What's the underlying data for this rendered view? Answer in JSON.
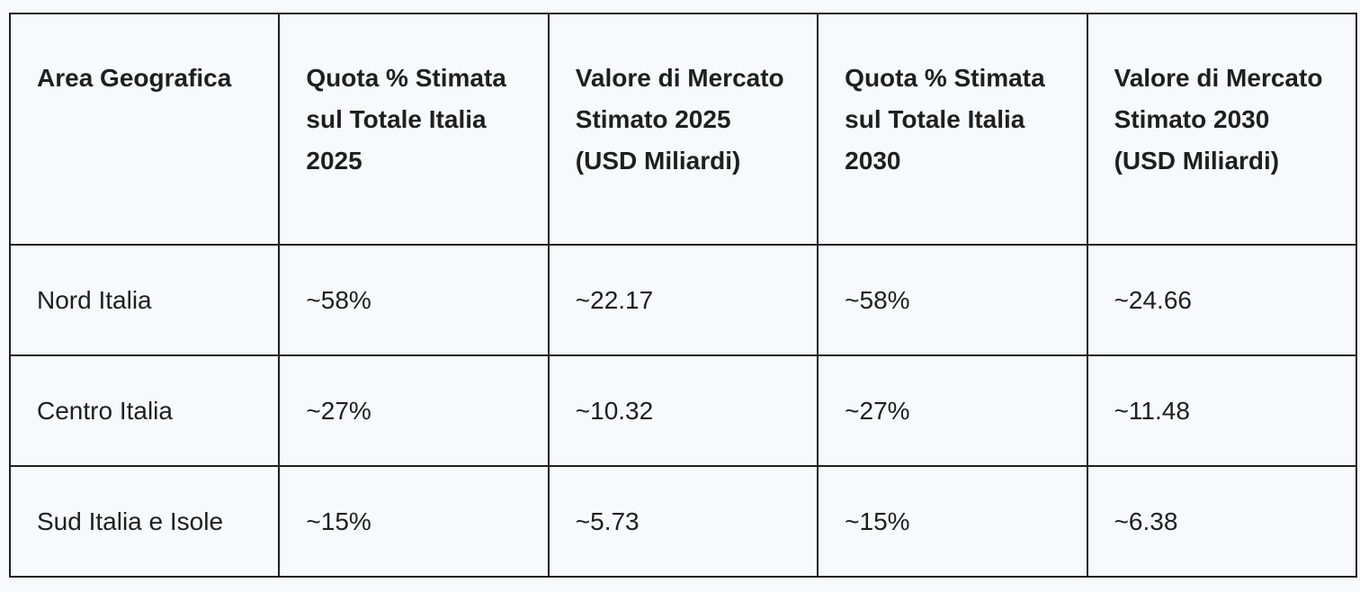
{
  "table": {
    "headers": [
      "Area Geografica",
      "Quota % Stimata sul Totale Italia 2025",
      "Valore di Mercato Stimato 2025 (USD Miliardi)",
      "Quota % Stimata sul Totale Italia 2030",
      "Valore di Mercato Stimato 2030 (USD Miliardi)"
    ],
    "rows": [
      [
        "Nord Italia",
        "~58%",
        "~22.17",
        "~58%",
        "~24.66"
      ],
      [
        "Centro Italia",
        "~27%",
        "~10.32",
        "~27%",
        "~11.48"
      ],
      [
        "Sud Italia e Isole",
        "~15%",
        "~5.73",
        "~15%",
        "~6.38"
      ]
    ]
  }
}
